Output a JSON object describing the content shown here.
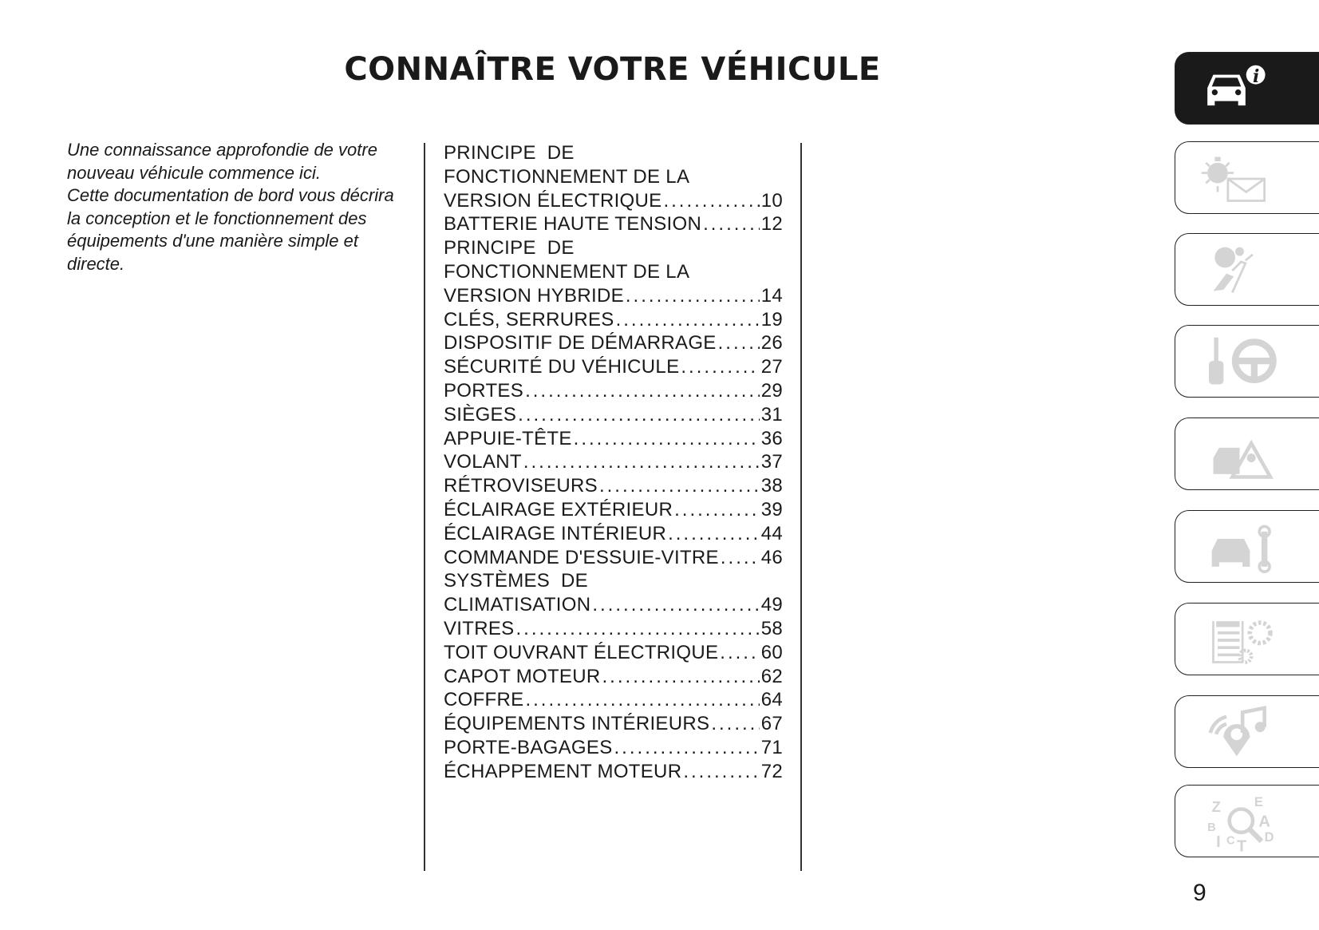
{
  "header": {
    "title": "CONNAÎTRE VOTRE VÉHICULE"
  },
  "intro": {
    "paragraphs": [
      "Une connaissance approfondie de votre nouveau véhicule commence ici.",
      "Cette documentation de bord vous décrira la conception et le fonctionnement des équipements d'une manière simple et directe."
    ]
  },
  "toc": [
    {
      "lines": [
        "PRINCIPE  DE",
        "FONCTIONNEMENT DE LA"
      ],
      "label": "VERSION ÉLECTRIQUE",
      "page": "10"
    },
    {
      "lines": [],
      "label": "BATTERIE HAUTE TENSION",
      "page": "12"
    },
    {
      "lines": [
        "PRINCIPE  DE",
        "FONCTIONNEMENT DE LA"
      ],
      "label": "VERSION HYBRIDE",
      "page": "14"
    },
    {
      "lines": [],
      "label": "CLÉS, SERRURES",
      "page": "19"
    },
    {
      "lines": [],
      "label": "DISPOSITIF DE DÉMARRAGE",
      "page": "26"
    },
    {
      "lines": [],
      "label": "SÉCURITÉ DU VÉHICULE",
      "page": "27"
    },
    {
      "lines": [],
      "label": "PORTES",
      "page": "29"
    },
    {
      "lines": [],
      "label": "SIÈGES",
      "page": "31"
    },
    {
      "lines": [],
      "label": "APPUIE-TÊTE",
      "page": "36"
    },
    {
      "lines": [],
      "label": "VOLANT",
      "page": "37"
    },
    {
      "lines": [],
      "label": "RÉTROVISEURS",
      "page": "38"
    },
    {
      "lines": [],
      "label": "ÉCLAIRAGE EXTÉRIEUR",
      "page": "39"
    },
    {
      "lines": [],
      "label": "ÉCLAIRAGE INTÉRIEUR",
      "page": "44"
    },
    {
      "lines": [],
      "label": "COMMANDE D'ESSUIE-VITRE",
      "page": "46"
    },
    {
      "lines": [
        "SYSTÈMES  DE"
      ],
      "label": "CLIMATISATION",
      "page": "49"
    },
    {
      "lines": [],
      "label": "VITRES",
      "page": "58"
    },
    {
      "lines": [],
      "label": "TOIT OUVRANT ÉLECTRIQUE",
      "page": "60"
    },
    {
      "lines": [],
      "label": "CAPOT MOTEUR",
      "page": "62"
    },
    {
      "lines": [],
      "label": "COFFRE",
      "page": "64"
    },
    {
      "lines": [],
      "label": "ÉQUIPEMENTS INTÉRIEURS",
      "page": "67"
    },
    {
      "lines": [],
      "label": "PORTE-BAGAGES",
      "page": "71"
    },
    {
      "lines": [],
      "label": "ÉCHAPPEMENT MOTEUR",
      "page": "72"
    }
  ],
  "tabs": [
    {
      "icon": "car-info-icon",
      "active": true
    },
    {
      "icon": "warning-light-message-icon",
      "active": false
    },
    {
      "icon": "airbag-safety-icon",
      "active": false
    },
    {
      "icon": "key-steering-wheel-icon",
      "active": false
    },
    {
      "icon": "emergency-icon",
      "active": false
    },
    {
      "icon": "car-maintenance-icon",
      "active": false
    },
    {
      "icon": "technical-data-icon",
      "active": false
    },
    {
      "icon": "multimedia-icon",
      "active": false
    },
    {
      "icon": "index-search-icon",
      "active": false
    }
  ],
  "tab_icon_letters": [
    "Z",
    "E",
    "B",
    "A",
    "I",
    "C",
    "T",
    "D"
  ],
  "colors": {
    "active_tab": "#1a1a1a",
    "inactive_icon": "#d4d4d4"
  },
  "page_number": "9"
}
